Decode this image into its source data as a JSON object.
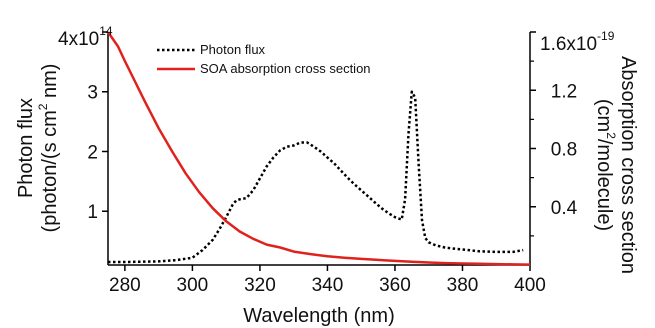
{
  "chart_data": {
    "type": "line",
    "xlabel": "Wavelength (nm)",
    "ylabel_left": {
      "line1": "Photon flux",
      "line2_prefix": "(photon/(s cm",
      "line2_sup": "2",
      "line2_suffix": " nm)"
    },
    "ylabel_right": {
      "line1": "Absorption cross section",
      "line2_prefix": "(cm",
      "line2_sup": "2",
      "line2_suffix": "/molecule)"
    },
    "xlim": [
      275,
      400
    ],
    "ylim_left": [
      10000000000000.0,
      400000000000000.0
    ],
    "ylim_right": [
      0,
      1.6e-19
    ],
    "x_ticks": [
      280,
      300,
      320,
      340,
      360,
      380,
      400
    ],
    "x_tick_labels": [
      "280",
      "300",
      "320",
      "340",
      "360",
      "380",
      "400"
    ],
    "y_left_ticks": [
      100000000000000.0,
      200000000000000.0,
      300000000000000.0
    ],
    "y_left_tick_labels": [
      "1",
      "2",
      "3"
    ],
    "y_left_top_label": {
      "mantissa": "4x10",
      "exponent": "14"
    },
    "y_right_ticks": [
      4e-20,
      8e-20,
      1.2e-19
    ],
    "y_right_tick_labels": [
      "0.4",
      "0.8",
      "1.2"
    ],
    "y_right_top_label": {
      "mantissa": "1.6x10",
      "exponent": "-19"
    },
    "legend_position": "top-left",
    "series": [
      {
        "name": "Photon flux",
        "axis": "left",
        "style": "dotted",
        "color": "#000000",
        "x": [
          275,
          280,
          290,
          295,
          300,
          303,
          306,
          308,
          310,
          312,
          313,
          314,
          316,
          318,
          320,
          322,
          324,
          326,
          328,
          330,
          332,
          334,
          336,
          338,
          340,
          342,
          344,
          346,
          348,
          350,
          352,
          354,
          356,
          358,
          360,
          362,
          363,
          364,
          365,
          366,
          367,
          368,
          369,
          370,
          372,
          375,
          380,
          385,
          390,
          395,
          398
        ],
        "y": [
          15000000000000.0,
          15000000000000.0,
          16000000000000.0,
          18000000000000.0,
          22000000000000.0,
          35000000000000.0,
          52000000000000.0,
          70000000000000.0,
          90000000000000.0,
          112000000000000.0,
          118000000000000.0,
          120000000000000.0,
          122000000000000.0,
          135000000000000.0,
          155000000000000.0,
          175000000000000.0,
          190000000000000.0,
          202000000000000.0,
          208000000000000.0,
          210000000000000.0,
          215000000000000.0,
          215000000000000.0,
          208000000000000.0,
          200000000000000.0,
          190000000000000.0,
          180000000000000.0,
          168000000000000.0,
          156000000000000.0,
          145000000000000.0,
          135000000000000.0,
          125000000000000.0,
          115000000000000.0,
          105000000000000.0,
          97000000000000.0,
          90000000000000.0,
          86000000000000.0,
          120000000000000.0,
          230000000000000.0,
          300000000000000.0,
          290000000000000.0,
          180000000000000.0,
          85000000000000.0,
          55000000000000.0,
          48000000000000.0,
          43000000000000.0,
          39000000000000.0,
          36000000000000.0,
          33000000000000.0,
          32000000000000.0,
          32000000000000.0,
          35000000000000.0
        ]
      },
      {
        "name": "SOA absorption cross section",
        "axis": "right",
        "style": "solid",
        "color": "#e0221c",
        "x": [
          275,
          278,
          280,
          283,
          286,
          290,
          294,
          298,
          302,
          306,
          310,
          314,
          318,
          322,
          326,
          330,
          335,
          340,
          345,
          350,
          355,
          360,
          365,
          370,
          375,
          380,
          385,
          390,
          395,
          400
        ],
        "y": [
          1.6e-19,
          1.5e-19,
          1.4e-19,
          1.26e-19,
          1.12e-19,
          9.4e-20,
          7.8e-20,
          6.3e-20,
          5e-20,
          3.9e-20,
          3e-20,
          2.3e-20,
          1.8e-20,
          1.4e-20,
          1.2e-20,
          9.2e-21,
          7.5e-21,
          6e-21,
          5e-21,
          4.2e-21,
          3.5e-21,
          2.8e-21,
          2.2e-21,
          1.7e-21,
          1.3e-21,
          1e-21,
          8e-22,
          6e-22,
          4e-22,
          3e-22
        ]
      }
    ]
  }
}
